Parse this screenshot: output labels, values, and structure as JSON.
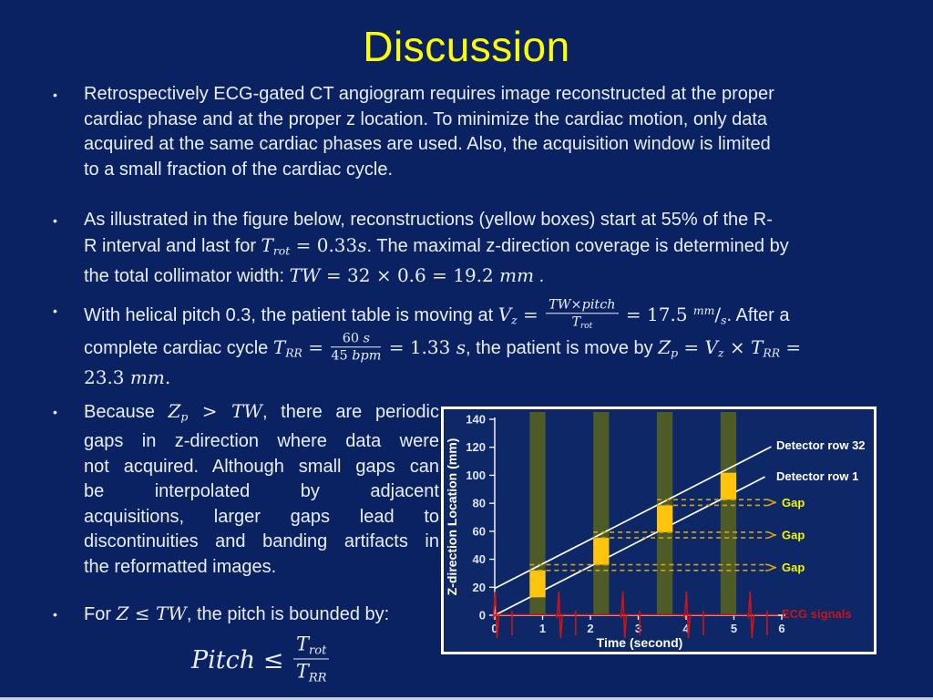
{
  "slide": {
    "title": "Discussion",
    "bullet_char": "•",
    "colors": {
      "background": "#0a2261",
      "title": "#fdff00",
      "text": "#e9eefa"
    },
    "bullets": [
      {
        "lines": [
          {
            "segs": [
              {
                "t": "Retrospectively ECG-gated CT angiogram requires image reconstructed at the proper",
                "s": "p"
              }
            ]
          },
          {
            "segs": [
              {
                "t": "cardiac phase and at the proper z location. To minimize the cardiac motion, only data",
                "s": "p"
              }
            ]
          },
          {
            "segs": [
              {
                "t": "acquired at the same cardiac phases are used. Also, the acquisition window is limited",
                "s": "p"
              }
            ]
          },
          {
            "segs": [
              {
                "t": "to a small fraction of the cardiac cycle.",
                "s": "p"
              }
            ]
          }
        ]
      },
      {
        "lines": [
          {
            "segs": [
              {
                "t": "As illustrated in the figure below, reconstructions (yellow boxes) start at 55% of the R-",
                "s": "p"
              }
            ]
          },
          {
            "segs": [
              {
                "t": "R interval and last for ",
                "s": "p"
              },
              {
                "t": "T",
                "s": "m"
              },
              {
                "t": "rot",
                "s": "sub"
              },
              {
                "t": " = 0.33",
                "s": "n"
              },
              {
                "t": "s",
                "s": "m"
              },
              {
                "t": ". The maximal z-direction coverage is determined by",
                "s": "p"
              }
            ]
          },
          {
            "segs": [
              {
                "t": "the total collimator width: ",
                "s": "p"
              },
              {
                "t": "TW",
                "s": "m"
              },
              {
                "t": " = 32 × 0.6 = 19.2 ",
                "s": "n"
              },
              {
                "t": "mm",
                "s": "m"
              },
              {
                "t": " .",
                "s": "p"
              }
            ]
          }
        ]
      },
      {
        "lines": [
          {
            "segs": [
              {
                "t": "With helical pitch 0.3, the patient table is moving at ",
                "s": "p"
              },
              {
                "t": "V",
                "s": "m"
              },
              {
                "t": "z",
                "s": "sub"
              },
              {
                "t": " = ",
                "s": "n"
              },
              {
                "frac": {
                  "num": [
                    {
                      "t": "TW",
                      "s": "m"
                    },
                    {
                      "t": "×",
                      "s": "n"
                    },
                    {
                      "t": "pitch",
                      "s": "m"
                    }
                  ],
                  "den": [
                    {
                      "t": "T",
                      "s": "m"
                    },
                    {
                      "t": "rot",
                      "s": "sub"
                    }
                  ]
                }
              },
              {
                "t": " = 17.5 ",
                "s": "n"
              },
              {
                "t": "mm",
                "s": "sup"
              },
              {
                "t": "/",
                "s": "n"
              },
              {
                "t": "s",
                "s": "sub"
              },
              {
                "t": ". After a",
                "s": "p"
              }
            ]
          },
          {
            "segs": [
              {
                "t": "complete cardiac cycle ",
                "s": "p"
              },
              {
                "t": "T",
                "s": "m"
              },
              {
                "t": "RR",
                "s": "sub"
              },
              {
                "t": " = ",
                "s": "n"
              },
              {
                "frac": {
                  "num": [
                    {
                      "t": "60 ",
                      "s": "n"
                    },
                    {
                      "t": "s",
                      "s": "m"
                    }
                  ],
                  "den": [
                    {
                      "t": "45 ",
                      "s": "n"
                    },
                    {
                      "t": "bpm",
                      "s": "m"
                    }
                  ]
                }
              },
              {
                "t": " = 1.33 ",
                "s": "n"
              },
              {
                "t": "s",
                "s": "m"
              },
              {
                "t": ", the patient is move by ",
                "s": "p"
              },
              {
                "t": "Z",
                "s": "m"
              },
              {
                "t": "p",
                "s": "sub"
              },
              {
                "t": " = ",
                "s": "n"
              },
              {
                "t": "V",
                "s": "m"
              },
              {
                "t": "z",
                "s": "sub"
              },
              {
                "t": " × ",
                "s": "n"
              },
              {
                "t": "T",
                "s": "m"
              },
              {
                "t": "RR",
                "s": "sub"
              },
              {
                "t": " =",
                "s": "n"
              }
            ]
          },
          {
            "segs": [
              {
                "t": "23.3 ",
                "s": "n"
              },
              {
                "t": "mm",
                "s": "m"
              },
              {
                "t": ".",
                "s": "n"
              }
            ]
          }
        ]
      },
      {
        "lines": [
          {
            "j": true,
            "segs": [
              {
                "t": "Because ",
                "s": "p"
              },
              {
                "t": "Z",
                "s": "m"
              },
              {
                "t": "p",
                "s": "sub"
              },
              {
                "t": " > ",
                "s": "n"
              },
              {
                "t": "TW",
                "s": "m"
              },
              {
                "t": ", there are periodic",
                "s": "p"
              }
            ]
          },
          {
            "j": true,
            "segs": [
              {
                "t": "gaps in z-direction where data were",
                "s": "p"
              }
            ]
          },
          {
            "j": true,
            "segs": [
              {
                "t": "not acquired. Although small gaps can",
                "s": "p"
              }
            ]
          },
          {
            "j": true,
            "segs": [
              {
                "t": "be interpolated by adjacent",
                "s": "p"
              }
            ]
          },
          {
            "j": true,
            "segs": [
              {
                "t": "acquisitions, larger gaps lead to",
                "s": "p"
              }
            ]
          },
          {
            "j": true,
            "segs": [
              {
                "t": "discontinuities and banding artifacts in",
                "s": "p"
              }
            ]
          },
          {
            "segs": [
              {
                "t": "the reformatted images.",
                "s": "p"
              }
            ]
          }
        ]
      },
      {
        "lines": [
          {
            "segs": [
              {
                "t": "For ",
                "s": "p"
              },
              {
                "t": "Z",
                "s": "m"
              },
              {
                "t": " ≤ ",
                "s": "n"
              },
              {
                "t": "TW",
                "s": "m"
              },
              {
                "t": ", the pitch is bounded by:",
                "s": "p"
              }
            ]
          },
          {
            "cls": "formula",
            "segs": [
              {
                "t": "Pitch",
                "s": "m"
              },
              {
                "t": " ≤ ",
                "s": "n"
              },
              {
                "frac": {
                  "num": [
                    {
                      "t": "T",
                      "s": "m"
                    },
                    {
                      "t": "rot",
                      "s": "sub"
                    }
                  ],
                  "den": [
                    {
                      "t": "T",
                      "s": "m"
                    },
                    {
                      "t": "RR",
                      "s": "sub"
                    }
                  ]
                }
              }
            ]
          }
        ]
      }
    ]
  },
  "chart_data": {
    "type": "line",
    "xlabel": "Time (second)",
    "ylabel": "Z-direction Location (mm)",
    "xlim": [
      0,
      6.3
    ],
    "ylim": [
      0,
      140
    ],
    "xticks": [
      0,
      1,
      2,
      3,
      4,
      5,
      6
    ],
    "yticks": [
      0,
      20,
      40,
      60,
      80,
      100,
      120,
      140
    ],
    "detector_lines": [
      {
        "label": "Detector row 32",
        "points": [
          [
            0,
            19.2
          ],
          [
            5.78,
            120.4
          ]
        ]
      },
      {
        "label": "Detector row 1",
        "points": [
          [
            0,
            0
          ],
          [
            5.65,
            98.9
          ]
        ]
      }
    ],
    "acquisition_windows": [
      [
        0.73,
        1.06
      ],
      [
        2.06,
        2.39
      ],
      [
        3.39,
        3.72
      ],
      [
        4.72,
        5.05
      ]
    ],
    "recon_boxes": [
      {
        "t": [
          0.73,
          1.06
        ],
        "z": [
          12.8,
          32.0
        ]
      },
      {
        "t": [
          2.06,
          2.39
        ],
        "z": [
          36.1,
          55.3
        ]
      },
      {
        "t": [
          3.39,
          3.72
        ],
        "z": [
          59.3,
          78.5
        ]
      },
      {
        "t": [
          4.72,
          5.05
        ],
        "z": [
          82.6,
          101.8
        ]
      }
    ],
    "gaps": {
      "label": "Gap",
      "pairs": [
        [
          32.0,
          36.1
        ],
        [
          55.3,
          59.3
        ],
        [
          78.5,
          82.6
        ]
      ]
    },
    "ecg": {
      "label": "ECG signals",
      "r_peak_times": [
        0,
        1.33,
        2.67,
        4.0,
        5.33
      ]
    },
    "colors": {
      "band": "#4d5b26",
      "box": "#ffc40e",
      "gap_line": "#d2a517",
      "gap_text": "#f6f600",
      "ecg": "#cc1414",
      "detector_line": "#ffffff",
      "axis": "#ffffff",
      "axis_text": "#dfe6f2"
    },
    "legend_position": "right-inside",
    "grid": false
  }
}
